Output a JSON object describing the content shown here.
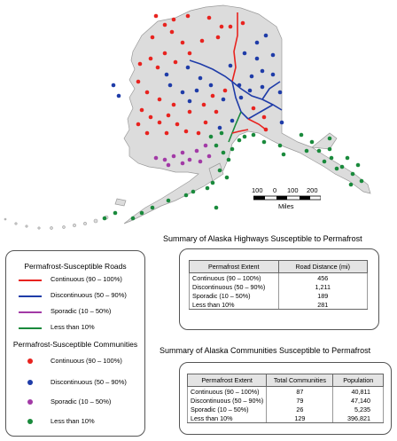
{
  "legend": {
    "roads_title": "Permafrost-Susceptible Roads",
    "communities_title": "Permafrost-Susceptible Communities",
    "categories": [
      {
        "label": "Continuous (90 – 100%)",
        "color": "#e8231f"
      },
      {
        "label": "Discontinuous (50 – 90%)",
        "color": "#1f3ca8"
      },
      {
        "label": "Sporadic (10 – 50%)",
        "color": "#a23aa6"
      },
      {
        "label": "Less than 10%",
        "color": "#1a8a3c"
      }
    ]
  },
  "scale_bar": {
    "ticks": [
      "100",
      "0",
      "100",
      "200"
    ],
    "unit": "Miles"
  },
  "highways_table": {
    "title": "Summary of Alaska Highways Susceptible to Permafrost",
    "headers": [
      "Permafrost Extent",
      "Road Distance (mi)"
    ],
    "rows": [
      [
        "Continuous (90 – 100%)",
        "456"
      ],
      [
        "Discontinuous (50 – 90%)",
        "1,211"
      ],
      [
        "Sporadic (10 – 50%)",
        "189"
      ],
      [
        "Less than 10%",
        "281"
      ]
    ]
  },
  "communities_table": {
    "title": "Summary of Alaska Communities Susceptible to Permafrost",
    "headers": [
      "Permafrost Extent",
      "Total Communities",
      "Population"
    ],
    "rows": [
      [
        "Continuous (90 – 100%)",
        "87",
        "40,811"
      ],
      [
        "Discontinuous (50 – 90%)",
        "79",
        "47,140"
      ],
      [
        "Sporadic (10 – 50%)",
        "26",
        "5,235"
      ],
      [
        "Less than 10%",
        "129",
        "396,821"
      ]
    ]
  }
}
